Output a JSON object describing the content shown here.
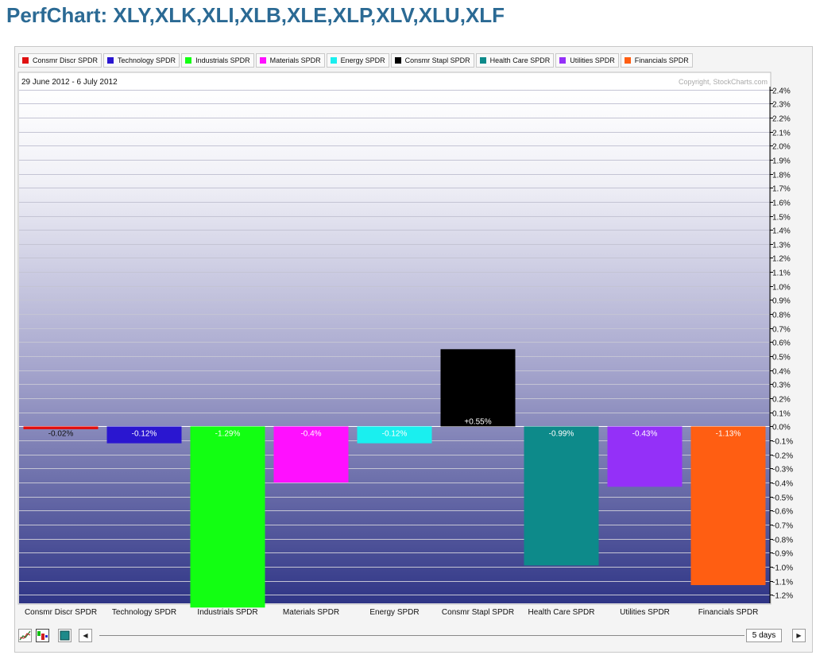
{
  "title": "PerfChart: XLY,XLK,XLI,XLB,XLE,XLP,XLV,XLU,XLF",
  "date_range": "29 June 2012 - 6 July 2012",
  "copyright": "Copyright, StockCharts.com",
  "period": "5 days",
  "chart_data": {
    "type": "bar",
    "categories": [
      "Consmr Discr SPDR",
      "Technology SPDR",
      "Industrials SPDR",
      "Materials SPDR",
      "Energy SPDR",
      "Consmr Stapl SPDR",
      "Health Care SPDR",
      "Utilities SPDR",
      "Financials SPDR"
    ],
    "values": [
      -0.02,
      -0.12,
      -1.29,
      -0.4,
      -0.12,
      0.55,
      -0.99,
      -0.43,
      -1.13
    ],
    "value_labels": [
      "-0.02%",
      "-0.12%",
      "-1.29%",
      "-0.4%",
      "-0.12%",
      "+0.55%",
      "-0.99%",
      "-0.43%",
      "-1.13%"
    ],
    "colors": [
      "#e01010",
      "#2a16d0",
      "#12ff12",
      "#ff10ff",
      "#1aefef",
      "#000000",
      "#0d8a8a",
      "#9430f8",
      "#ff5e12"
    ],
    "ylim": [
      -1.2,
      2.4
    ],
    "yticks": [
      "2.4%",
      "2.3%",
      "2.2%",
      "2.1%",
      "2.0%",
      "1.9%",
      "1.8%",
      "1.7%",
      "1.6%",
      "1.5%",
      "1.4%",
      "1.3%",
      "1.2%",
      "1.1%",
      "1.0%",
      "0.9%",
      "0.8%",
      "0.7%",
      "0.6%",
      "0.5%",
      "0.4%",
      "0.3%",
      "0.2%",
      "0.1%",
      "0.0%",
      "-0.1%",
      "-0.2%",
      "-0.3%",
      "-0.4%",
      "-0.5%",
      "-0.6%",
      "-0.7%",
      "-0.8%",
      "-0.9%",
      "-1.0%",
      "-1.1%",
      "-1.2%"
    ],
    "legend_position": "top",
    "grid": true
  },
  "icons": {
    "line_view": "line-chart-icon",
    "bar_view": "bar-chart-icon",
    "histogram_view": "histogram-icon",
    "scroll_left": "arrow-left-icon",
    "scroll_right": "arrow-right-icon"
  }
}
